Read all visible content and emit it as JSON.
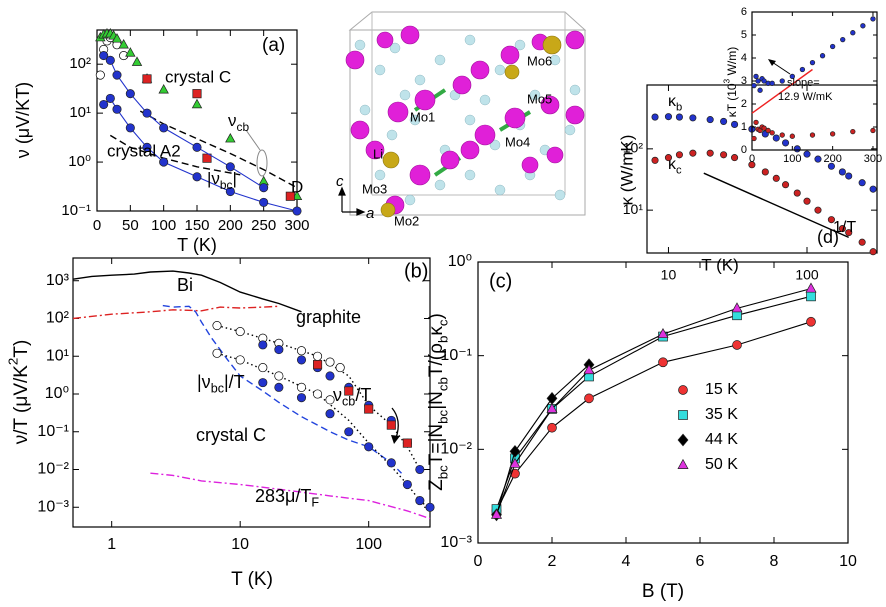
{
  "chart_data": [
    {
      "type": "scatter",
      "panel_label": "(a)",
      "xlabel": "T (K)",
      "ylabel": "ν (μV/KT)",
      "xlim": [
        0,
        300
      ],
      "xticks": [
        0,
        50,
        100,
        150,
        200,
        250,
        300
      ],
      "ylim": [
        0.1,
        500
      ],
      "yscale": "log",
      "yticks": [
        {
          "value": 0.1,
          "label": "10⁻¹"
        },
        {
          "value": 1,
          "label": "10⁰"
        },
        {
          "value": 10,
          "label": "10¹"
        },
        {
          "value": 100,
          "label": "10²"
        }
      ],
      "annotations": [
        "crystal C",
        [
          {
            "text": "ν"
          },
          {
            "text": "cb",
            "script": "sub"
          }
        ],
        "D",
        "crystal A2",
        [
          {
            "text": "|ν"
          },
          {
            "text": "bc",
            "script": "sub"
          },
          {
            "text": "|"
          }
        ]
      ],
      "series": [
        {
          "x": [
            65,
            100,
            150,
            200,
            250,
            300
          ],
          "values": [
            11,
            6,
            3,
            1.5,
            0.7,
            0.3
          ],
          "color": "#000000",
          "marker": "none",
          "line": "dashed"
        },
        {
          "x": [
            20,
            50,
            100,
            150,
            215
          ],
          "values": [
            3.5,
            2,
            1.2,
            0.8,
            0.55
          ],
          "color": "#000000",
          "marker": "none",
          "line": "dashed"
        },
        {
          "x": [
            5,
            10,
            15,
            20,
            30,
            40
          ],
          "values": [
            60,
            200,
            300,
            350,
            250,
            150
          ],
          "color": "#000000",
          "marker": "circle",
          "filled": false
        },
        {
          "x": [
            5,
            10,
            15,
            20,
            25,
            30,
            40,
            50,
            60,
            75,
            100,
            150,
            200,
            250,
            300
          ],
          "values": [
            350,
            400,
            420,
            420,
            380,
            330,
            250,
            170,
            110,
            50,
            30,
            15,
            3,
            0.4,
            0.2
          ],
          "color": "#33cc33",
          "marker": "triangle",
          "filled": true
        },
        {
          "x": [
            75,
            150,
            165,
            290
          ],
          "values": [
            50,
            25,
            1.2,
            0.2
          ],
          "color": "#dd2222",
          "marker": "square",
          "filled": true
        },
        {
          "x": [
            10,
            20,
            30,
            50,
            75,
            100,
            150,
            200,
            250
          ],
          "values": [
            150,
            120,
            60,
            25,
            10,
            5,
            2,
            0.8,
            0.3
          ],
          "color": "#2233cc",
          "marker": "circle",
          "filled": true,
          "line": "solid"
        },
        {
          "x": [
            10,
            20,
            30,
            50,
            75,
            100,
            150,
            200,
            250,
            300
          ],
          "values": [
            15,
            20,
            12,
            5,
            2,
            1,
            0.5,
            0.25,
            0.15,
            0.1
          ],
          "color": "#2233cc",
          "marker": "circle",
          "filled": true,
          "line": "solid"
        }
      ]
    },
    {
      "type": "scatter",
      "panel_label": "(b)",
      "xlabel": "T (K)",
      "ylabel": [
        {
          "text": "ν/T (μV/K"
        },
        {
          "text": "2",
          "script": "sup"
        },
        {
          "text": "T)"
        }
      ],
      "xlim": [
        0.5,
        300
      ],
      "xscale": "log",
      "xticks": [
        1,
        10,
        100
      ],
      "ylim": [
        0.0003,
        4000
      ],
      "yscale": "log",
      "yticks": [
        {
          "value": 0.001,
          "label": "10⁻³"
        },
        {
          "value": 0.01,
          "label": "10⁻²"
        },
        {
          "value": 0.1,
          "label": "10⁻¹"
        },
        {
          "value": 1,
          "label": "10⁰"
        },
        {
          "value": 10,
          "label": "10¹"
        },
        {
          "value": 100,
          "label": "10²"
        },
        {
          "value": 1000,
          "label": "10³"
        }
      ],
      "annotations": [
        "Bi",
        "graphite",
        [
          {
            "text": "ν"
          },
          {
            "text": "cb",
            "script": "sub"
          },
          {
            "text": "/T"
          }
        ],
        [
          {
            "text": "|ν"
          },
          {
            "text": "bc",
            "script": "sub"
          },
          {
            "text": "|/T"
          }
        ],
        "crystal C",
        [
          {
            "text": "283μ/T"
          },
          {
            "text": "F",
            "script": "sub"
          }
        ]
      ],
      "series": [
        {
          "x": [
            0.5,
            0.7,
            1,
            1.5,
            2,
            3,
            4,
            5,
            7,
            10,
            15,
            20,
            30
          ],
          "values": [
            1100,
            1300,
            1400,
            1500,
            1700,
            1800,
            1600,
            1400,
            900,
            500,
            330,
            250,
            150
          ],
          "color": "#000000",
          "marker": "none",
          "line": "solid"
        },
        {
          "x": [
            2.5,
            3,
            4,
            4.5,
            5,
            6,
            8,
            10,
            15,
            20,
            30,
            50,
            70,
            100,
            150,
            180
          ],
          "values": [
            220,
            200,
            210,
            150,
            80,
            30,
            8,
            3,
            1.2,
            0.6,
            0.25,
            0.1,
            0.06,
            0.04,
            0.015,
            0.008
          ],
          "color": "#2244dd",
          "marker": "none",
          "line": "dashed"
        },
        {
          "x": [
            0.5,
            1,
            2,
            3,
            5,
            7,
            10,
            15,
            20
          ],
          "values": [
            100,
            130,
            150,
            170,
            160,
            200,
            190,
            200,
            210
          ],
          "color": "#dd2222",
          "marker": "none",
          "line": "dashdot"
        },
        {
          "x": [
            2,
            3,
            5,
            10,
            20,
            50,
            100,
            200,
            300
          ],
          "values": [
            0.008,
            0.007,
            0.005,
            0.004,
            0.003,
            0.002,
            0.0015,
            0.0008,
            0.0005
          ],
          "color": "#dd22dd",
          "marker": "none",
          "line": "dashdot"
        },
        {
          "x": [
            6.6,
            10,
            20,
            40,
            70,
            100,
            150,
            200,
            250
          ],
          "values": [
            65,
            45,
            22,
            10,
            3,
            0.5,
            0.15,
            0.04,
            0.01
          ],
          "color": "#000000",
          "marker": "none",
          "line": "dotted"
        },
        {
          "x": [
            6.6,
            10,
            20,
            40,
            70,
            100,
            150,
            200,
            250,
            300
          ],
          "values": [
            12,
            8,
            3,
            1,
            0.2,
            0.05,
            0.012,
            0.004,
            0.0015,
            0.0009
          ],
          "color": "#000000",
          "marker": "none",
          "line": "dotted"
        },
        {
          "x": [
            6.6,
            10,
            15,
            20,
            30,
            40,
            50,
            60
          ],
          "values": [
            65,
            45,
            30,
            22,
            14,
            10,
            7,
            5
          ],
          "color": "#000000",
          "marker": "circle",
          "filled": false
        },
        {
          "x": [
            6.6,
            10,
            15,
            20,
            30,
            40,
            50
          ],
          "values": [
            12,
            8,
            5,
            3,
            1.5,
            1,
            0.7
          ],
          "color": "#000000",
          "marker": "circle",
          "filled": false
        },
        {
          "x": [
            15,
            20,
            30,
            40,
            50,
            70,
            100,
            150,
            200,
            250
          ],
          "values": [
            20,
            15,
            8,
            5,
            3,
            1.5,
            0.5,
            0.2,
            0.05,
            0.01
          ],
          "color": "#2233cc",
          "marker": "circle",
          "filled": true
        },
        {
          "x": [
            15,
            20,
            30,
            50,
            70,
            100,
            150,
            200,
            250,
            300
          ],
          "values": [
            2,
            1.5,
            0.8,
            0.3,
            0.1,
            0.04,
            0.015,
            0.004,
            0.0015,
            0.001
          ],
          "color": "#2233cc",
          "marker": "circle",
          "filled": true
        },
        {
          "x": [
            40,
            70,
            100,
            150,
            200
          ],
          "values": [
            6,
            1.2,
            0.4,
            0.15,
            0.05
          ],
          "color": "#dd2222",
          "marker": "square",
          "filled": true
        }
      ]
    },
    {
      "type": "scatter",
      "panel_label": "(c)",
      "xlabel": "B (T)",
      "ylabel": [
        {
          "text": "Z"
        },
        {
          "text": "bc",
          "script": "sub"
        },
        {
          "text": "T=|N"
        },
        {
          "text": "bc",
          "script": "sub"
        },
        {
          "text": "|N"
        },
        {
          "text": "cb",
          "script": "sub"
        },
        {
          "text": "T/(ρ"
        },
        {
          "text": "b",
          "script": "sub"
        },
        {
          "text": "κ"
        },
        {
          "text": "c",
          "script": "sub"
        },
        {
          "text": ")"
        }
      ],
      "xlim": [
        0,
        10
      ],
      "xticks": [
        0,
        2,
        4,
        6,
        8,
        10
      ],
      "ylim": [
        0.001,
        1
      ],
      "yscale": "log",
      "yticks": [
        {
          "value": 0.001,
          "label": "10⁻³"
        },
        {
          "value": 0.01,
          "label": "10⁻²"
        },
        {
          "value": 0.1,
          "label": "10⁻¹"
        },
        {
          "value": 1,
          "label": "10⁰"
        }
      ],
      "legend": "right",
      "series": [
        {
          "name": "15 K",
          "x": [
            0.5,
            1,
            2,
            3,
            5,
            7,
            9
          ],
          "values": [
            0.0022,
            0.0055,
            0.017,
            0.035,
            0.085,
            0.13,
            0.23
          ],
          "color": "#ee3333",
          "marker": "circle",
          "filled": true,
          "line": "solid",
          "line_color": "#000000"
        },
        {
          "name": "35 K",
          "x": [
            0.5,
            1,
            2,
            3,
            5,
            7,
            9
          ],
          "values": [
            0.0023,
            0.008,
            0.027,
            0.06,
            0.16,
            0.27,
            0.43
          ],
          "color": "#33dddd",
          "marker": "square",
          "filled": true,
          "line": "solid",
          "line_color": "#000000"
        },
        {
          "name": "44 K",
          "x": [
            0.5,
            1,
            2,
            3
          ],
          "values": [
            0.002,
            0.0095,
            0.035,
            0.08
          ],
          "color": "#000000",
          "marker": "diamond",
          "filled": true,
          "line": "solid",
          "line_color": "#000000"
        },
        {
          "name": "50 K",
          "x": [
            0.5,
            1,
            2,
            3,
            5,
            7,
            9
          ],
          "values": [
            0.002,
            0.007,
            0.027,
            0.07,
            0.17,
            0.32,
            0.52
          ],
          "color": "#dd33dd",
          "marker": "triangle",
          "filled": true,
          "line": "solid",
          "line_color": "#000000"
        }
      ]
    },
    {
      "type": "scatter",
      "panel_label": "(d)",
      "xlabel": "T (K)",
      "ylabel": "κ (W/mK)",
      "xlim": [
        7,
        320
      ],
      "xscale": "log",
      "xticks": [
        10,
        100
      ],
      "ylim": [
        2,
        1100
      ],
      "yscale": "log",
      "yticks": [
        {
          "value": 10,
          "label": "10¹"
        },
        {
          "value": 100,
          "label": "10²"
        }
      ],
      "annotations": [
        [
          {
            "text": "κ"
          },
          {
            "text": "b",
            "script": "sub"
          }
        ],
        [
          {
            "text": "κ"
          },
          {
            "text": "c",
            "script": "sub"
          }
        ],
        "1/T"
      ],
      "series": [
        {
          "x": [
            18,
            200
          ],
          "values": [
            40,
            3.6
          ],
          "color": "#000000",
          "marker": "none",
          "line": "solid"
        },
        {
          "x": [
            8,
            10,
            12,
            15,
            20,
            25,
            30,
            40,
            50,
            60,
            70,
            85,
            100,
            120,
            150,
            180,
            200,
            250,
            300
          ],
          "values": [
            330,
            335,
            330,
            320,
            300,
            280,
            250,
            210,
            175,
            150,
            125,
            100,
            82,
            68,
            52,
            42,
            36,
            28,
            22
          ],
          "color": "#2233cc",
          "marker": "circle",
          "filled": true
        },
        {
          "x": [
            8,
            10,
            12,
            15,
            20,
            25,
            30,
            40,
            50,
            60,
            70,
            85,
            100,
            120,
            150,
            180,
            200,
            250,
            300
          ],
          "values": [
            65,
            72,
            80,
            85,
            85,
            80,
            72,
            55,
            42,
            33,
            26,
            19,
            14,
            10,
            7,
            5,
            4.3,
            3,
            2.1
          ],
          "color": "#cc2222",
          "marker": "circle",
          "filled": true
        }
      ]
    },
    {
      "type": "scatter",
      "inset": true,
      "ylabel": [
        {
          "text": "κT (10"
        },
        {
          "text": "3",
          "script": "sup"
        },
        {
          "text": " W/m)"
        }
      ],
      "xlim": [
        0,
        310
      ],
      "xticks": [
        0,
        100,
        200,
        300
      ],
      "ylim": [
        0,
        6
      ],
      "yticks": [
        0,
        1,
        2,
        3,
        4,
        5,
        6
      ],
      "annotations": [
        "slope=",
        "12.9 W/mK"
      ],
      "series": [
        {
          "x": [
            5,
            10,
            15,
            20,
            25,
            30,
            40,
            50,
            75,
            100,
            125,
            150,
            175,
            200,
            225,
            250,
            275,
            300
          ],
          "values": [
            2.8,
            3.2,
            3.0,
            2.6,
            3.1,
            3.0,
            2.9,
            2.9,
            3.0,
            3.2,
            3.5,
            3.8,
            4.1,
            4.5,
            4.8,
            5.1,
            5.4,
            5.7
          ],
          "color": "#2233cc",
          "marker": "circle",
          "filled": true
        },
        {
          "x": [
            5,
            10,
            15,
            20,
            25,
            30,
            40,
            50,
            75,
            100,
            150,
            200,
            250,
            300
          ],
          "values": [
            0.5,
            1.2,
            0.9,
            0.85,
            1.0,
            0.95,
            0.85,
            0.75,
            0.65,
            0.6,
            0.65,
            0.7,
            0.8,
            0.85
          ],
          "color": "#cc2222",
          "marker": "circle",
          "filled": true
        },
        {
          "x": [
            0,
            150
          ],
          "values": [
            1.6,
            3.5
          ],
          "color": "#ee2222",
          "marker": "none",
          "line": "solid"
        }
      ]
    }
  ],
  "structure": {
    "labels": [
      "Mo6",
      "Mo5",
      "Mo1",
      "Mo4",
      "Li",
      "Mo3",
      "Mo2"
    ],
    "axes": [
      "c",
      "a"
    ]
  }
}
